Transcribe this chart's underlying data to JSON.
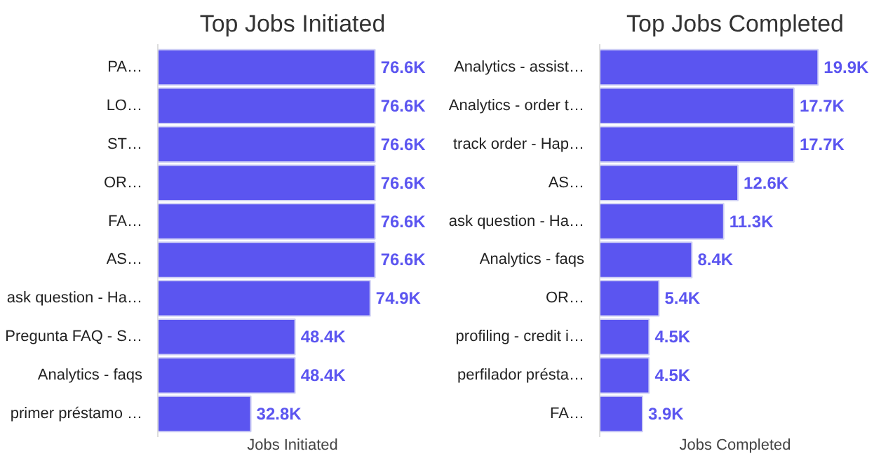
{
  "chart_data": [
    {
      "type": "bar",
      "orientation": "horizontal",
      "title": "Top Jobs Initiated",
      "xlabel": "Jobs Initiated",
      "color": "#5b55f0",
      "categories": [
        "PA…",
        "LO…",
        "ST…",
        "OR…",
        "FA…",
        "AS…",
        "ask question - Ha…",
        "Pregunta FAQ - S…",
        "Analytics - faqs",
        "primer préstamo …"
      ],
      "values": [
        76.6,
        76.6,
        76.6,
        76.6,
        76.6,
        76.6,
        74.9,
        48.4,
        48.4,
        32.8
      ],
      "value_labels": [
        "76.6K",
        "76.6K",
        "76.6K",
        "76.6K",
        "76.6K",
        "76.6K",
        "74.9K",
        "48.4K",
        "48.4K",
        "32.8K"
      ]
    },
    {
      "type": "bar",
      "orientation": "horizontal",
      "title": "Top Jobs Completed",
      "xlabel": "Jobs Completed",
      "color": "#5b55f0",
      "categories": [
        "Analytics - assist…",
        "Analytics - order t…",
        "track order - Hap…",
        "AS…",
        "ask question - Ha…",
        "Analytics - faqs",
        "OR…",
        "profiling - credit i…",
        "perfilador présta…",
        "FA…"
      ],
      "values": [
        19.9,
        17.7,
        17.7,
        12.6,
        11.3,
        8.4,
        5.4,
        4.5,
        4.5,
        3.9
      ],
      "value_labels": [
        "19.9K",
        "17.7K",
        "17.7K",
        "12.6K",
        "11.3K",
        "8.4K",
        "5.4K",
        "4.5K",
        "4.5K",
        "3.9K"
      ]
    }
  ]
}
